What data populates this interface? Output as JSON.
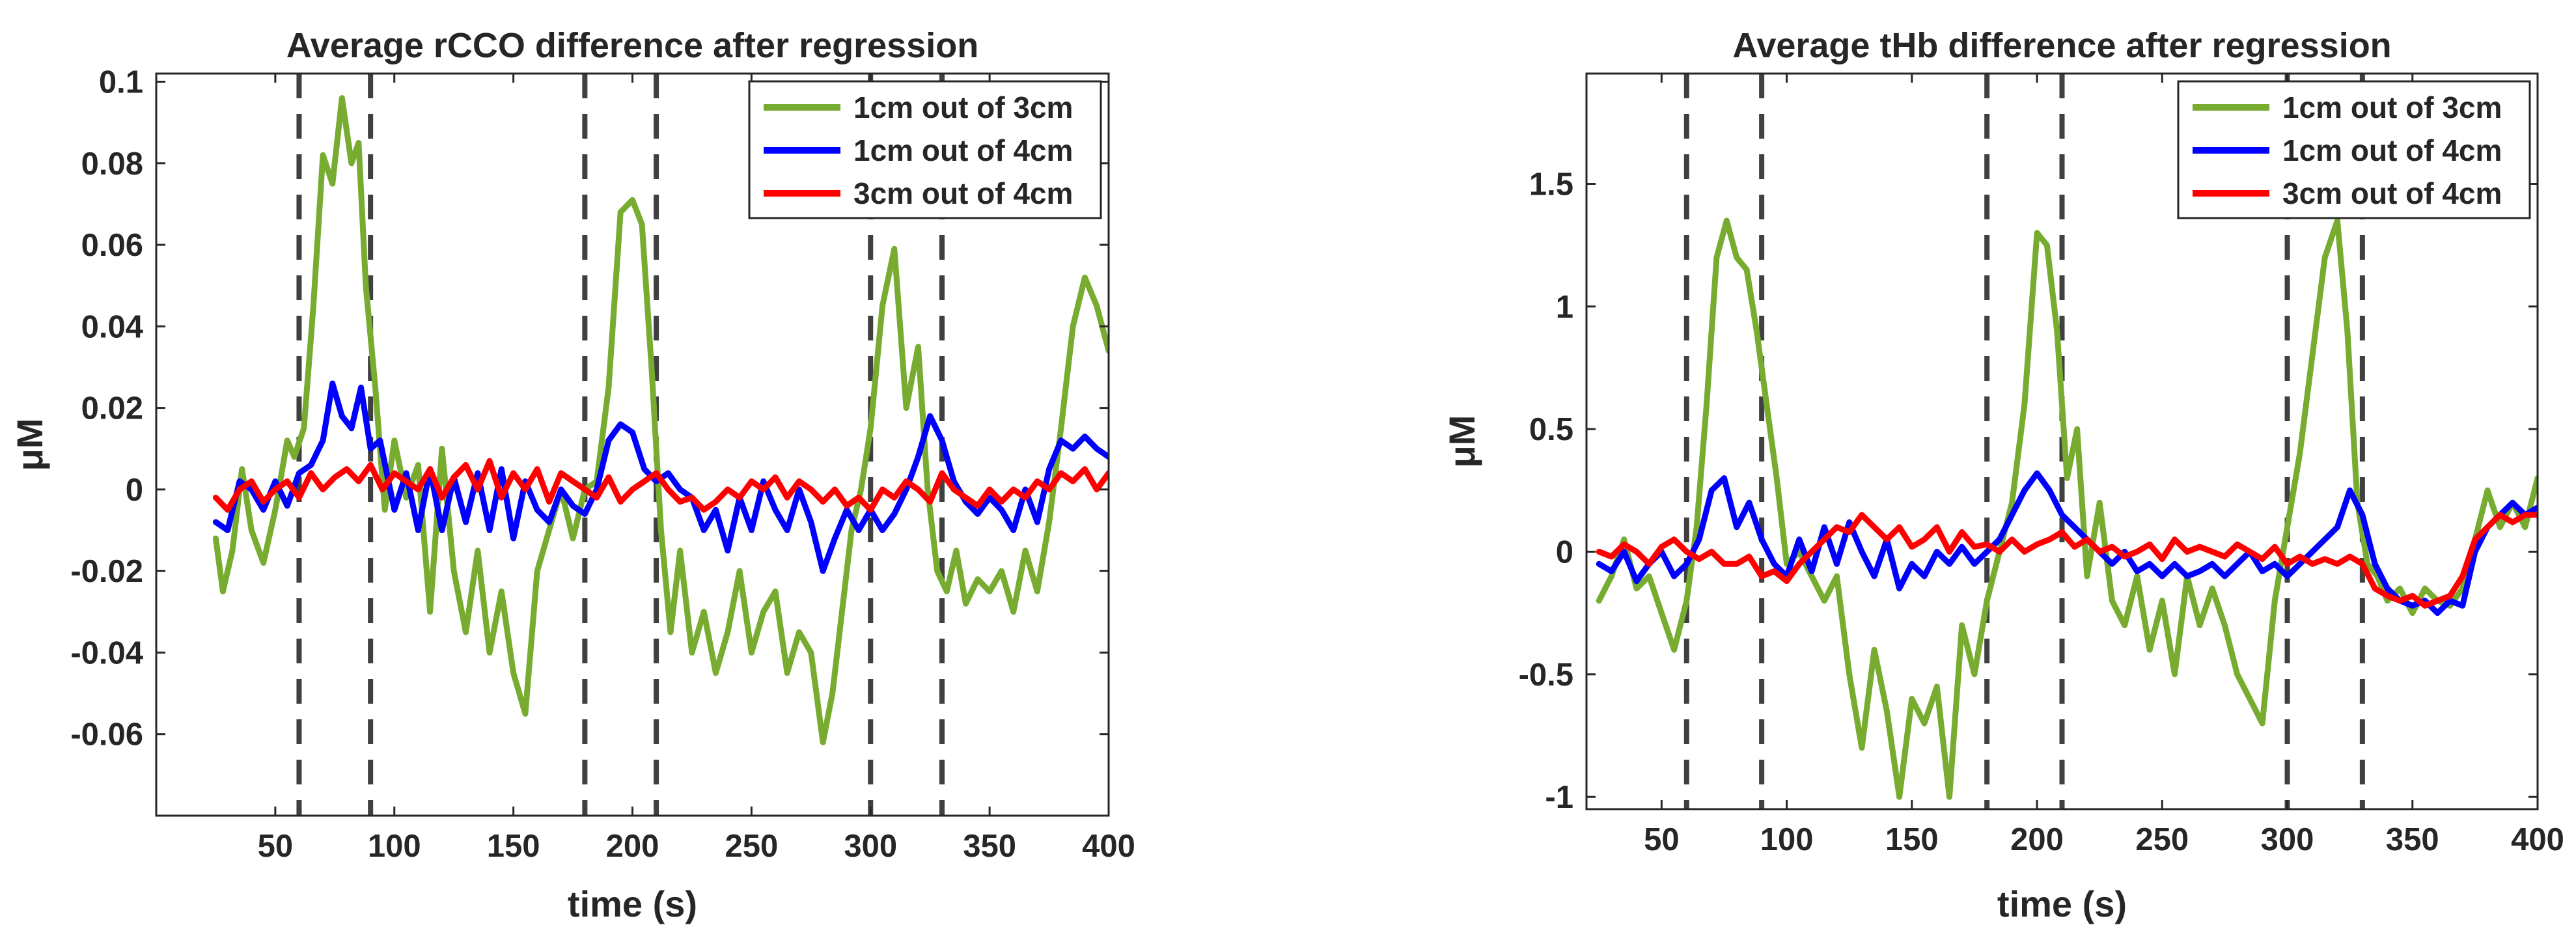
{
  "chart_data": [
    {
      "type": "line",
      "title": "Average rCCO difference after regression",
      "xlabel": "time (s)",
      "ylabel": "μM",
      "xlim": [
        0,
        400
      ],
      "ylim": [
        -0.08,
        0.102
      ],
      "xticks": [
        50,
        100,
        150,
        200,
        250,
        300,
        350,
        400
      ],
      "xtick_labels": [
        "50",
        "100",
        "150",
        "200",
        "250",
        "300",
        "350",
        "400"
      ],
      "yticks": [
        -0.06,
        -0.04,
        -0.02,
        0,
        0.02,
        0.04,
        0.06,
        0.08,
        0.1
      ],
      "ytick_labels": [
        "-0.06",
        "-0.04",
        "-0.02",
        "0",
        "0.02",
        "0.04",
        "0.06",
        "0.08",
        "0.1"
      ],
      "vlines": [
        60,
        90,
        180,
        210,
        300,
        330
      ],
      "legend_position": "top-right",
      "series": [
        {
          "name": "1cm out of 3cm",
          "color": "#77ac30",
          "x": [
            25,
            28,
            32,
            36,
            40,
            45,
            50,
            55,
            58,
            62,
            66,
            70,
            74,
            78,
            82,
            85,
            88,
            92,
            96,
            100,
            105,
            110,
            115,
            120,
            125,
            130,
            135,
            140,
            145,
            150,
            155,
            160,
            165,
            170,
            175,
            180,
            185,
            190,
            195,
            200,
            204,
            208,
            212,
            216,
            220,
            225,
            230,
            235,
            240,
            245,
            250,
            255,
            260,
            265,
            270,
            275,
            280,
            284,
            288,
            292,
            296,
            300,
            305,
            310,
            315,
            320,
            324,
            328,
            332,
            336,
            340,
            345,
            350,
            355,
            360,
            365,
            370,
            375,
            380,
            385,
            390,
            395,
            400
          ],
          "values": [
            -0.012,
            -0.025,
            -0.015,
            0.005,
            -0.01,
            -0.018,
            -0.005,
            0.012,
            0.008,
            0.015,
            0.045,
            0.082,
            0.075,
            0.096,
            0.08,
            0.085,
            0.05,
            0.025,
            -0.005,
            0.012,
            -0.002,
            0.006,
            -0.03,
            0.01,
            -0.02,
            -0.035,
            -0.015,
            -0.04,
            -0.025,
            -0.045,
            -0.055,
            -0.02,
            -0.01,
            0.0,
            -0.012,
            0.0,
            0.002,
            0.025,
            0.068,
            0.071,
            0.065,
            0.03,
            -0.01,
            -0.035,
            -0.015,
            -0.04,
            -0.03,
            -0.045,
            -0.035,
            -0.02,
            -0.04,
            -0.03,
            -0.025,
            -0.045,
            -0.035,
            -0.04,
            -0.062,
            -0.05,
            -0.03,
            -0.01,
            0.0,
            0.015,
            0.045,
            0.059,
            0.02,
            0.035,
            0.0,
            -0.02,
            -0.025,
            -0.015,
            -0.028,
            -0.022,
            -0.025,
            -0.02,
            -0.03,
            -0.015,
            -0.025,
            -0.008,
            0.015,
            0.04,
            0.052,
            0.045,
            0.034
          ]
        },
        {
          "name": "1cm out of 4cm",
          "color": "#0000ff",
          "x": [
            25,
            30,
            35,
            40,
            45,
            50,
            55,
            60,
            65,
            70,
            74,
            78,
            82,
            86,
            90,
            94,
            100,
            105,
            110,
            115,
            120,
            125,
            130,
            135,
            140,
            145,
            150,
            155,
            160,
            165,
            170,
            175,
            180,
            185,
            190,
            195,
            200,
            205,
            210,
            215,
            220,
            225,
            230,
            235,
            240,
            245,
            250,
            255,
            260,
            265,
            270,
            275,
            280,
            285,
            290,
            295,
            300,
            305,
            310,
            315,
            320,
            325,
            330,
            335,
            340,
            345,
            350,
            355,
            360,
            365,
            370,
            375,
            380,
            385,
            390,
            395,
            400
          ],
          "values": [
            -0.008,
            -0.01,
            0.002,
            0.0,
            -0.005,
            0.002,
            -0.004,
            0.004,
            0.006,
            0.012,
            0.026,
            0.018,
            0.015,
            0.025,
            0.01,
            0.012,
            -0.005,
            0.004,
            -0.01,
            0.005,
            -0.01,
            0.003,
            -0.008,
            0.004,
            -0.01,
            0.005,
            -0.012,
            0.002,
            -0.005,
            -0.008,
            0.0,
            -0.004,
            -0.006,
            0.0,
            0.012,
            0.016,
            0.014,
            0.005,
            0.002,
            0.004,
            0.0,
            -0.002,
            -0.01,
            -0.005,
            -0.015,
            -0.002,
            -0.01,
            0.002,
            -0.005,
            -0.01,
            0.0,
            -0.008,
            -0.02,
            -0.012,
            -0.005,
            -0.01,
            -0.005,
            -0.01,
            -0.006,
            0.0,
            0.008,
            0.018,
            0.012,
            0.002,
            -0.003,
            -0.006,
            -0.002,
            -0.005,
            -0.01,
            0.0,
            -0.008,
            0.005,
            0.012,
            0.01,
            0.013,
            0.01,
            0.008
          ]
        },
        {
          "name": "3cm out of 4cm",
          "color": "#ff0000",
          "x": [
            25,
            30,
            35,
            40,
            45,
            50,
            55,
            60,
            65,
            70,
            75,
            80,
            85,
            90,
            95,
            100,
            105,
            110,
            115,
            120,
            125,
            130,
            135,
            140,
            145,
            150,
            155,
            160,
            165,
            170,
            175,
            180,
            185,
            190,
            195,
            200,
            205,
            210,
            215,
            220,
            225,
            230,
            235,
            240,
            245,
            250,
            255,
            260,
            265,
            270,
            275,
            280,
            285,
            290,
            295,
            300,
            305,
            310,
            315,
            320,
            325,
            330,
            335,
            340,
            345,
            350,
            355,
            360,
            365,
            370,
            375,
            380,
            385,
            390,
            395,
            400
          ],
          "values": [
            -0.002,
            -0.005,
            0.0,
            0.002,
            -0.003,
            0.0,
            0.002,
            -0.002,
            0.004,
            0.0,
            0.003,
            0.005,
            0.002,
            0.006,
            0.0,
            0.004,
            0.002,
            0.0,
            0.005,
            -0.002,
            0.003,
            0.006,
            0.0,
            0.007,
            -0.002,
            0.004,
            0.0,
            0.005,
            -0.003,
            0.004,
            0.002,
            0.0,
            -0.002,
            0.003,
            -0.003,
            0.0,
            0.002,
            0.004,
            0.0,
            -0.003,
            -0.002,
            -0.005,
            -0.003,
            0.0,
            -0.002,
            0.002,
            0.0,
            0.003,
            -0.002,
            0.002,
            0.0,
            -0.003,
            0.0,
            -0.004,
            -0.002,
            -0.005,
            0.0,
            -0.002,
            0.002,
            0.0,
            -0.003,
            0.004,
            0.0,
            -0.002,
            -0.004,
            0.0,
            -0.003,
            0.0,
            -0.002,
            0.002,
            0.0,
            0.004,
            0.002,
            0.005,
            0.0,
            0.004
          ]
        }
      ]
    },
    {
      "type": "line",
      "title": "Average tHb difference after regression",
      "xlabel": "time (s)",
      "ylabel": "μM",
      "xlim": [
        20,
        400
      ],
      "ylim": [
        -1.05,
        1.95
      ],
      "xticks": [
        50,
        100,
        150,
        200,
        250,
        300,
        350,
        400
      ],
      "xtick_labels": [
        "50",
        "100",
        "150",
        "200",
        "250",
        "300",
        "350",
        "400"
      ],
      "yticks": [
        -1,
        -0.5,
        0,
        0.5,
        1,
        1.5
      ],
      "ytick_labels": [
        "-1",
        "-0.5",
        "0",
        "0.5",
        "1",
        "1.5"
      ],
      "vlines": [
        60,
        90,
        180,
        210,
        300,
        330
      ],
      "legend_position": "top-right",
      "series": [
        {
          "name": "1cm out of 3cm",
          "color": "#77ac30",
          "x": [
            25,
            30,
            35,
            40,
            45,
            50,
            55,
            60,
            64,
            68,
            72,
            76,
            80,
            84,
            88,
            92,
            96,
            100,
            105,
            110,
            115,
            120,
            125,
            130,
            135,
            140,
            145,
            150,
            155,
            160,
            165,
            170,
            175,
            180,
            185,
            190,
            195,
            200,
            204,
            208,
            212,
            216,
            220,
            225,
            230,
            235,
            240,
            245,
            250,
            255,
            260,
            265,
            270,
            275,
            280,
            285,
            290,
            295,
            300,
            305,
            310,
            315,
            320,
            324,
            328,
            332,
            336,
            340,
            345,
            350,
            355,
            360,
            365,
            370,
            375,
            380,
            385,
            390,
            395,
            400
          ],
          "values": [
            -0.2,
            -0.1,
            0.05,
            -0.15,
            -0.1,
            -0.25,
            -0.4,
            -0.2,
            0.1,
            0.6,
            1.2,
            1.35,
            1.2,
            1.15,
            0.9,
            0.6,
            0.3,
            -0.05,
            0.0,
            -0.1,
            -0.2,
            -0.1,
            -0.5,
            -0.8,
            -0.4,
            -0.65,
            -1.0,
            -0.6,
            -0.7,
            -0.55,
            -1.0,
            -0.3,
            -0.5,
            -0.2,
            0.0,
            0.2,
            0.6,
            1.3,
            1.25,
            0.9,
            0.3,
            0.5,
            -0.1,
            0.2,
            -0.2,
            -0.3,
            -0.1,
            -0.4,
            -0.2,
            -0.5,
            -0.1,
            -0.3,
            -0.15,
            -0.3,
            -0.5,
            -0.6,
            -0.7,
            -0.2,
            0.1,
            0.4,
            0.8,
            1.2,
            1.35,
            0.9,
            0.2,
            -0.05,
            -0.1,
            -0.2,
            -0.15,
            -0.25,
            -0.15,
            -0.2,
            -0.22,
            -0.15,
            0.05,
            0.25,
            0.1,
            0.2,
            0.1,
            0.3
          ]
        },
        {
          "name": "1cm out of 4cm",
          "color": "#0000ff",
          "x": [
            25,
            30,
            35,
            40,
            45,
            50,
            55,
            60,
            65,
            70,
            75,
            80,
            85,
            90,
            95,
            100,
            105,
            110,
            115,
            120,
            125,
            130,
            135,
            140,
            145,
            150,
            155,
            160,
            165,
            170,
            175,
            180,
            185,
            190,
            195,
            200,
            205,
            210,
            215,
            220,
            225,
            230,
            235,
            240,
            245,
            250,
            255,
            260,
            265,
            270,
            275,
            280,
            285,
            290,
            295,
            300,
            305,
            310,
            315,
            320,
            325,
            330,
            335,
            340,
            345,
            350,
            355,
            360,
            365,
            370,
            375,
            380,
            385,
            390,
            395,
            400
          ],
          "values": [
            -0.05,
            -0.08,
            0.0,
            -0.12,
            -0.05,
            0.0,
            -0.1,
            -0.05,
            0.05,
            0.25,
            0.3,
            0.1,
            0.2,
            0.05,
            -0.05,
            -0.1,
            0.05,
            -0.08,
            0.1,
            -0.05,
            0.12,
            0.0,
            -0.1,
            0.05,
            -0.15,
            -0.05,
            -0.1,
            0.0,
            -0.05,
            0.02,
            -0.05,
            0.0,
            0.05,
            0.15,
            0.25,
            0.32,
            0.25,
            0.15,
            0.1,
            0.05,
            0.0,
            -0.05,
            0.0,
            -0.08,
            -0.05,
            -0.1,
            -0.05,
            -0.1,
            -0.08,
            -0.05,
            -0.1,
            -0.05,
            0.0,
            -0.08,
            -0.05,
            -0.1,
            -0.05,
            0.0,
            0.05,
            0.1,
            0.25,
            0.15,
            -0.05,
            -0.15,
            -0.2,
            -0.22,
            -0.2,
            -0.25,
            -0.2,
            -0.22,
            0.0,
            0.1,
            0.15,
            0.2,
            0.15,
            0.18
          ]
        },
        {
          "name": "3cm out of 4cm",
          "color": "#ff0000",
          "x": [
            25,
            30,
            35,
            40,
            45,
            50,
            55,
            60,
            65,
            70,
            75,
            80,
            85,
            90,
            95,
            100,
            105,
            110,
            115,
            120,
            125,
            130,
            135,
            140,
            145,
            150,
            155,
            160,
            165,
            170,
            175,
            180,
            185,
            190,
            195,
            200,
            205,
            210,
            215,
            220,
            225,
            230,
            235,
            240,
            245,
            250,
            255,
            260,
            265,
            270,
            275,
            280,
            285,
            290,
            295,
            300,
            305,
            310,
            315,
            320,
            325,
            330,
            335,
            340,
            345,
            350,
            355,
            360,
            365,
            370,
            375,
            380,
            385,
            390,
            395,
            400
          ],
          "values": [
            0.0,
            -0.02,
            0.03,
            0.0,
            -0.05,
            0.02,
            0.05,
            0.0,
            -0.03,
            0.0,
            -0.05,
            -0.05,
            -0.02,
            -0.1,
            -0.08,
            -0.12,
            -0.05,
            0.0,
            0.05,
            0.1,
            0.08,
            0.15,
            0.1,
            0.05,
            0.1,
            0.02,
            0.05,
            0.1,
            0.0,
            0.08,
            0.02,
            0.03,
            0.0,
            0.05,
            0.0,
            0.03,
            0.05,
            0.08,
            0.02,
            0.05,
            0.0,
            0.02,
            -0.02,
            0.0,
            0.03,
            -0.03,
            0.05,
            0.0,
            0.02,
            0.0,
            -0.02,
            0.03,
            0.0,
            -0.03,
            0.02,
            -0.05,
            -0.02,
            -0.05,
            -0.03,
            -0.05,
            -0.02,
            -0.05,
            -0.15,
            -0.18,
            -0.2,
            -0.18,
            -0.22,
            -0.2,
            -0.18,
            -0.1,
            0.05,
            0.1,
            0.15,
            0.12,
            0.15,
            0.15
          ]
        }
      ]
    }
  ]
}
